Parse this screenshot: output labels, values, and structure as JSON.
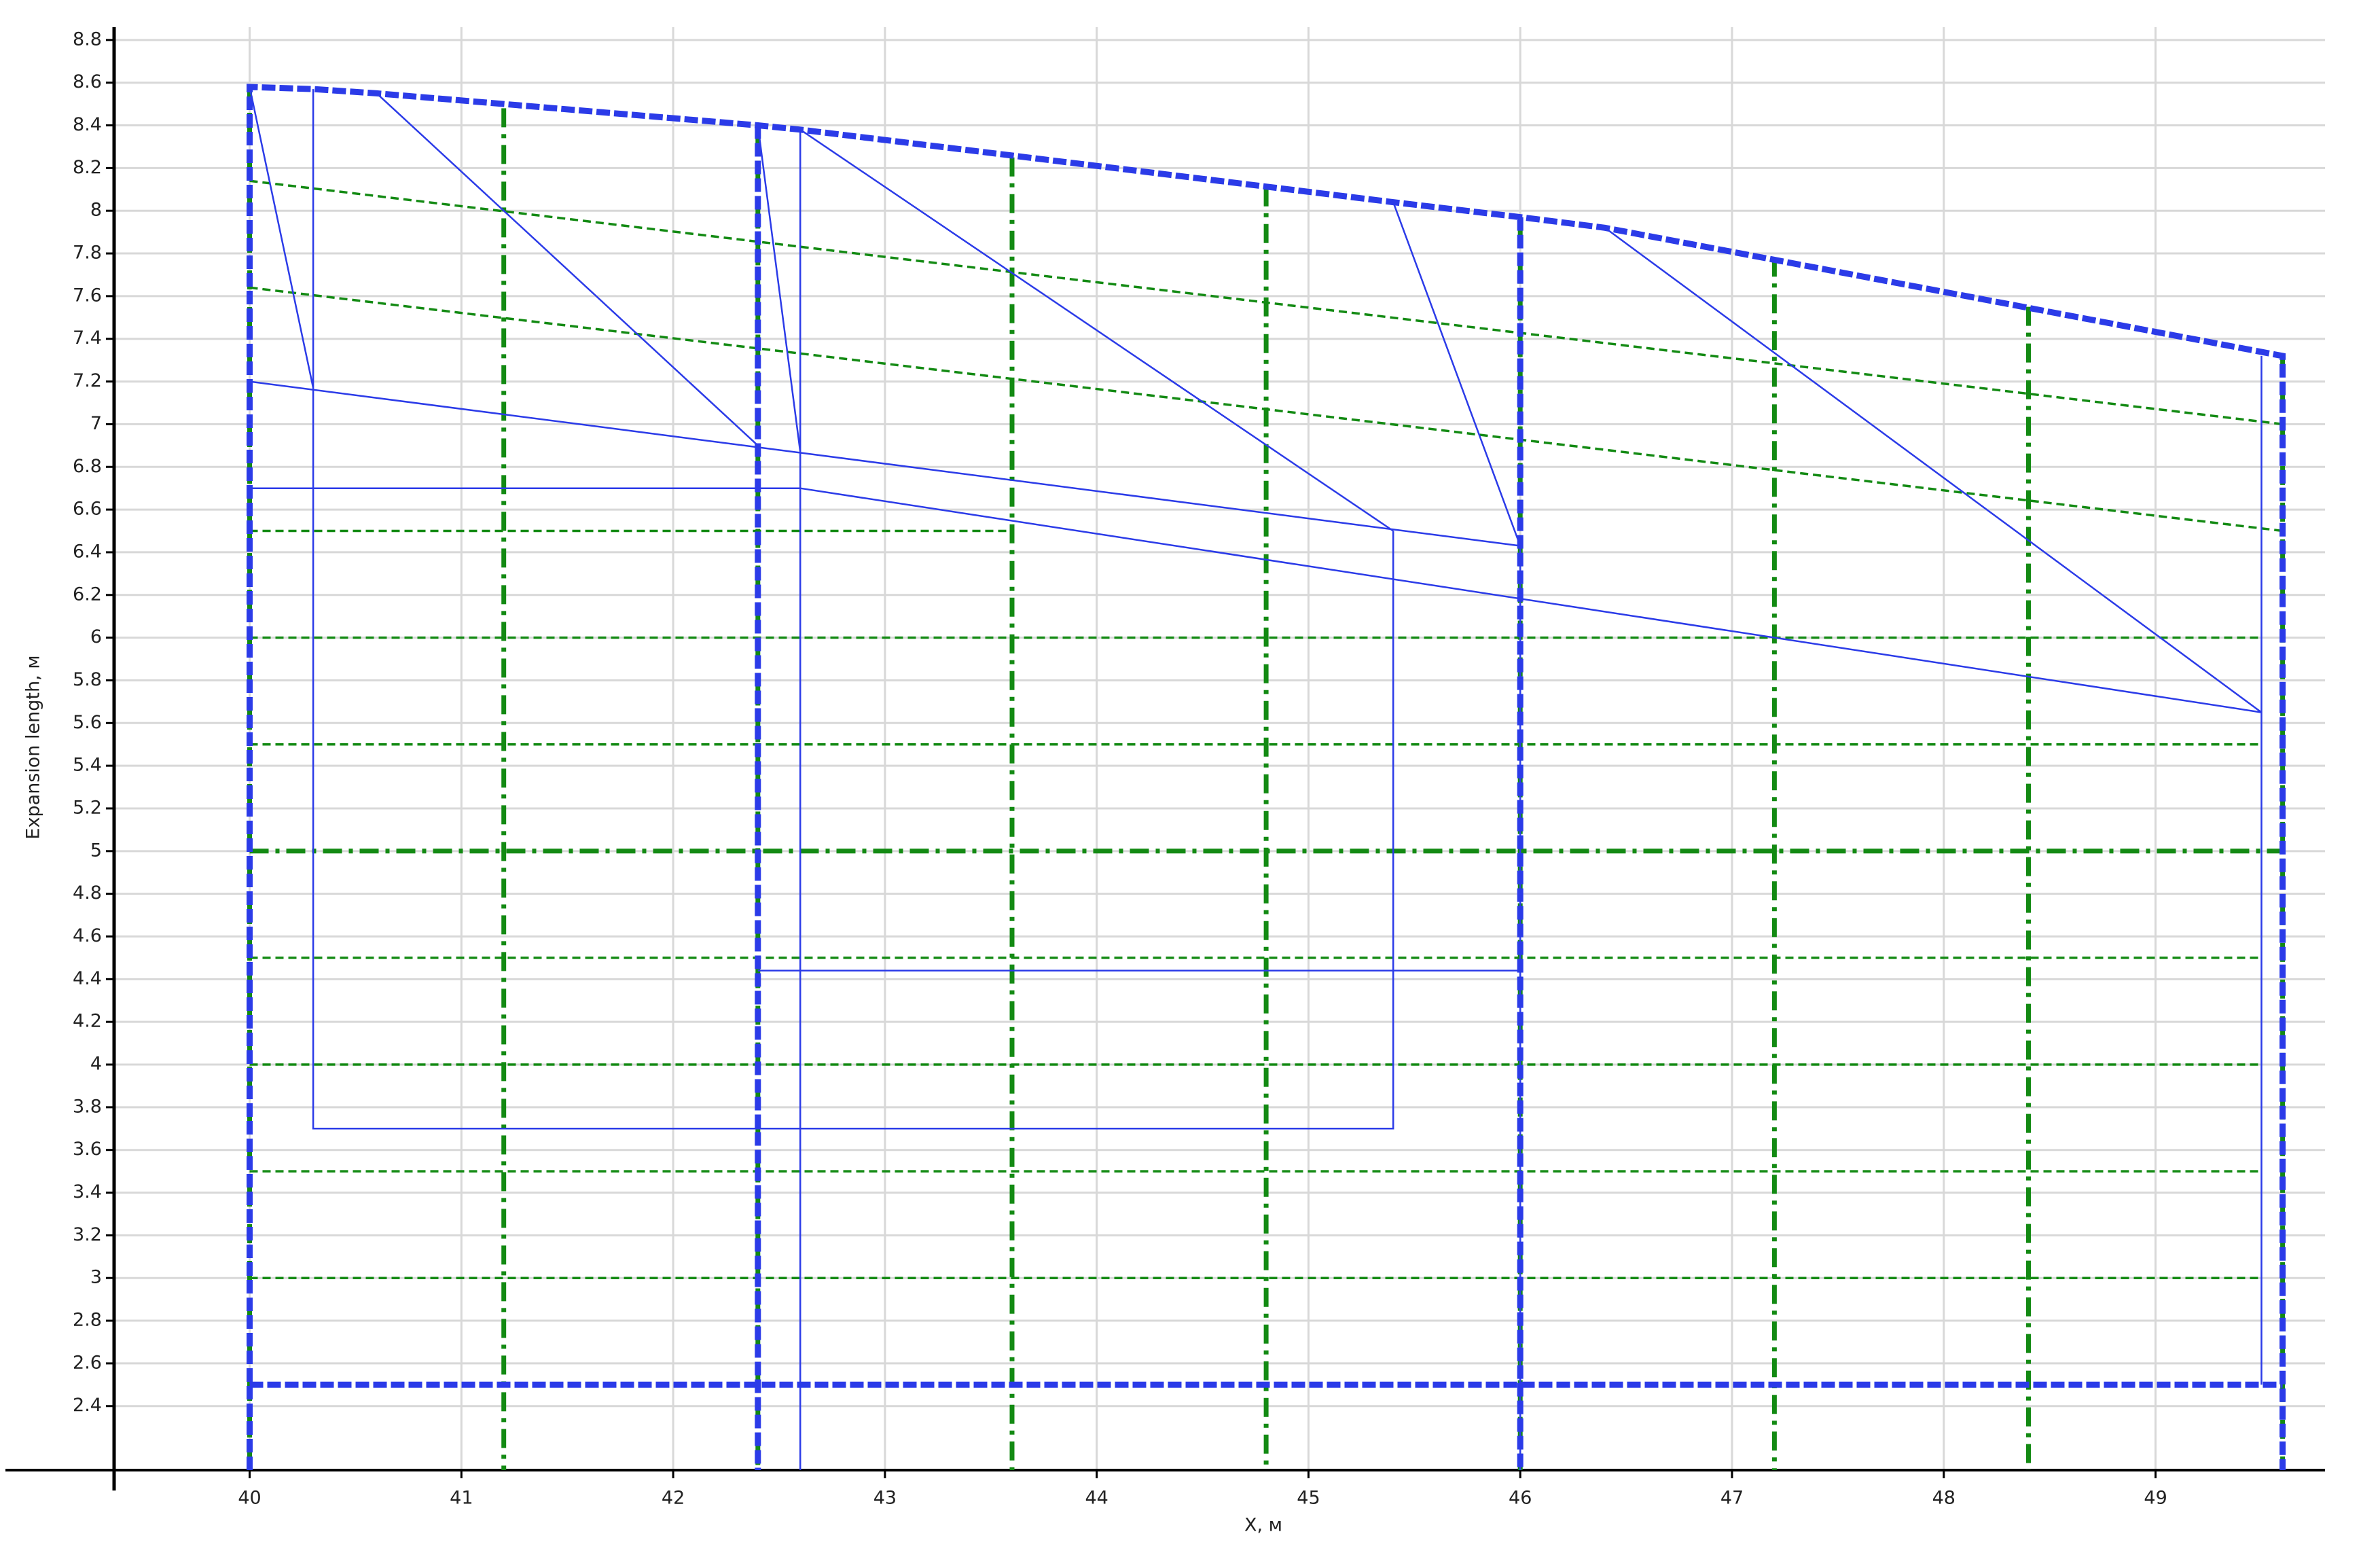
{
  "chart_data": {
    "type": "line",
    "xlabel": "X, м",
    "ylabel": "Expansion length, м",
    "xlim": [
      39.36,
      49.8
    ],
    "ylim": [
      2.1,
      8.86
    ],
    "xticks": [
      40,
      41,
      42,
      43,
      44,
      45,
      46,
      47,
      48,
      49
    ],
    "yticks": [
      2.4,
      2.6,
      2.8,
      3,
      3.2,
      3.4,
      3.6,
      3.8,
      4,
      4.2,
      4.4,
      4.6,
      4.8,
      5,
      5.2,
      5.4,
      5.6,
      5.8,
      6,
      6.2,
      6.4,
      6.6,
      6.8,
      7,
      7.2,
      7.4,
      7.6,
      7.8,
      8,
      8.2,
      8.4,
      8.6,
      8.8
    ],
    "grid": true,
    "series": [
      {
        "color": "#138a13",
        "line_style": "dashed",
        "x": [
          40,
          49.5,
          null,
          40,
          49.5,
          null,
          40,
          49.5,
          null,
          40,
          49.5,
          null,
          40,
          49.5,
          null,
          40,
          49.5,
          null,
          40,
          43.6,
          null,
          40,
          49.6,
          null,
          40,
          49.6
        ],
        "values": [
          3,
          3,
          null,
          3.5,
          3.5,
          null,
          4,
          4,
          null,
          4.5,
          4.5,
          null,
          5.5,
          5.5,
          null,
          6,
          6,
          null,
          6.5,
          6.5,
          null,
          8.14,
          7,
          null,
          7.64,
          6.5
        ]
      },
      {
        "color": "#138a13",
        "line_style": "bold-dashdot",
        "x": [
          40,
          49.6,
          null,
          40,
          40,
          null,
          41.2,
          41.2,
          null,
          42.4,
          42.4,
          null,
          43.6,
          43.6,
          null,
          44.8,
          44.8,
          null,
          46,
          46,
          null,
          47.2,
          47.2,
          null,
          48.4,
          48.4,
          null,
          49.6,
          49.6
        ],
        "values": [
          5,
          5,
          null,
          8.58,
          2.1,
          null,
          8.48,
          2.1,
          null,
          8.4,
          2.1,
          null,
          8.25,
          2.1,
          null,
          8.11,
          2.1,
          null,
          7.97,
          2.1,
          null,
          7.78,
          2.1,
          null,
          7.55,
          2.1,
          null,
          7.32,
          2.1
        ]
      },
      {
        "color": "#2b3be8",
        "line_style": "solid",
        "x": [
          40.3,
          40.3,
          45.4,
          45.4,
          null,
          40,
          46,
          46,
          null,
          40,
          42.6,
          49.5,
          null,
          42.6,
          42.6,
          null,
          49.5,
          49.5,
          null,
          42.4,
          46,
          null,
          40,
          40.3,
          null,
          40.6,
          42.4,
          null,
          42.4,
          42.6,
          null,
          42.6,
          45.4,
          null,
          45.4,
          46,
          null,
          46.4,
          49.5
        ],
        "values": [
          8.57,
          3.7,
          3.7,
          6.5,
          null,
          7.2,
          6.43,
          2.1,
          null,
          6.7,
          6.7,
          5.65,
          null,
          8.38,
          2.1,
          null,
          7.32,
          2.5,
          null,
          4.44,
          4.44,
          null,
          8.58,
          7.17,
          null,
          8.55,
          6.9,
          null,
          8.4,
          6.87,
          null,
          8.38,
          6.5,
          null,
          8.04,
          6.43,
          null,
          7.92,
          5.65
        ]
      },
      {
        "color": "#2b3be8",
        "line_style": "bold-dashed",
        "x": [
          40,
          40,
          40.3,
          40.6,
          42.4,
          42.6,
          45.4,
          46,
          46.4,
          49.6,
          49.6,
          null,
          40,
          49.6,
          null,
          42.4,
          42.4,
          null,
          46,
          46
        ],
        "values": [
          2.1,
          8.58,
          8.57,
          8.55,
          8.4,
          8.38,
          8.04,
          7.97,
          7.92,
          7.32,
          2.1,
          null,
          2.5,
          2.5,
          null,
          8.4,
          2.1,
          null,
          7.97,
          2.1
        ]
      }
    ]
  }
}
